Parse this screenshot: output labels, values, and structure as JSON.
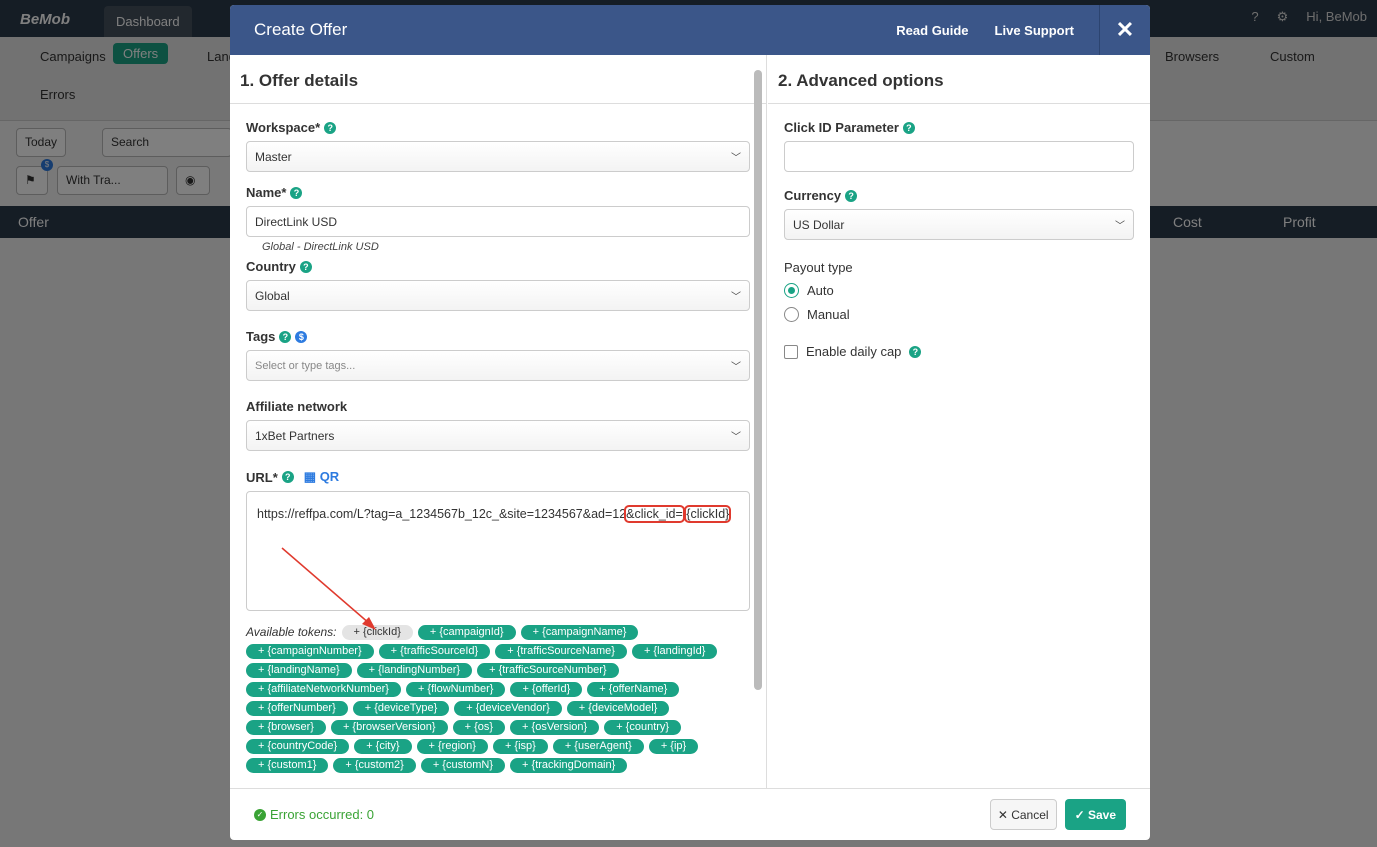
{
  "app": {
    "logo": "BeMob",
    "tabs": [
      "Dashboard"
    ],
    "user": "Hi, BeMob",
    "nav": [
      "Campaigns",
      "Offers",
      "Landers",
      "Browsers",
      "Custom",
      "Errors"
    ],
    "toolbar": {
      "date": "Today",
      "search_placeholder": "Search",
      "filter": "With Tra...",
      "badge": "$"
    },
    "table_headers": [
      "Offer",
      "Cost",
      "Profit"
    ]
  },
  "modal": {
    "title": "Create Offer",
    "read_guide": "Read Guide",
    "live_support": "Live Support",
    "left": {
      "heading": "1. Offer details",
      "workspace": {
        "label": "Workspace*",
        "value": "Master"
      },
      "name": {
        "label": "Name*",
        "value": "DirectLink USD",
        "hint": "Global - DirectLink USD"
      },
      "country": {
        "label": "Country",
        "value": "Global"
      },
      "tags": {
        "label": "Tags",
        "placeholder": "Select or type tags..."
      },
      "network": {
        "label": "Affiliate network",
        "value": "1xBet Partners"
      },
      "url": {
        "label": "URL*",
        "qr": "QR",
        "value_a": "https://reffpa.com/L?tag=a_1234567b_12c_&site=1234567&ad=12",
        "value_b": "&click_id=",
        "value_c": "{clickId}"
      },
      "tokens_label": "Available tokens:",
      "tokens": [
        "+ {clickId}",
        "+ {campaignId}",
        "+ {campaignName}",
        "+ {campaignNumber}",
        "+ {trafficSourceId}",
        "+ {trafficSourceName}",
        "+ {landingId}",
        "+ {landingName}",
        "+ {landingNumber}",
        "+ {trafficSourceNumber}",
        "+ {affiliateNetworkNumber}",
        "+ {flowNumber}",
        "+ {offerId}",
        "+ {offerName}",
        "+ {offerNumber}",
        "+ {deviceType}",
        "+ {deviceVendor}",
        "+ {deviceModel}",
        "+ {browser}",
        "+ {browserVersion}",
        "+ {os}",
        "+ {osVersion}",
        "+ {country}",
        "+ {countryCode}",
        "+ {city}",
        "+ {region}",
        "+ {isp}",
        "+ {userAgent}",
        "+ {ip}",
        "+ {custom1}",
        "+ {custom2}",
        "+ {customN}",
        "+ {trackingDomain}"
      ]
    },
    "right": {
      "heading": "2. Advanced options",
      "click_id_label": "Click ID Parameter",
      "click_id_value": "",
      "currency": {
        "label": "Currency",
        "value": "US Dollar"
      },
      "payout_label": "Payout type",
      "payout_options": [
        "Auto",
        "Manual"
      ],
      "payout_selected": "Auto",
      "daily_cap": "Enable daily cap"
    },
    "footer": {
      "errors": "Errors occurred: 0",
      "cancel": "Cancel",
      "save": "Save"
    }
  },
  "colors": {
    "accent": "#1aa385",
    "header": "#3b5689",
    "annotation": "#e03a2e"
  }
}
